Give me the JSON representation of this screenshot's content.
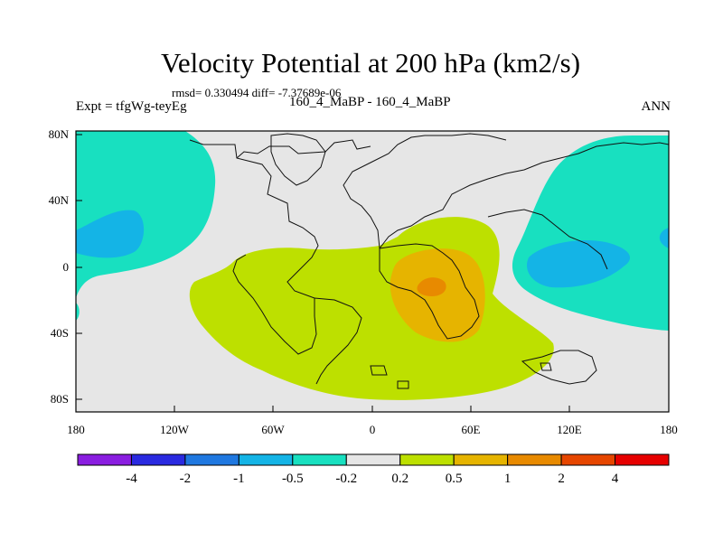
{
  "chart_data": {
    "type": "contour-map",
    "title": "Velocity Potential at 200 hPa (km2/s)",
    "subtitle": "rmsd= 0.330494 diff= -7.37689e-06",
    "experiment": "Expt = tfgWg-teyEg",
    "case": "160_4_MaBP - 160_4_MaBP",
    "season": "ANN",
    "x_axis": {
      "range": [
        -180,
        180
      ],
      "tick_labels": [
        "180",
        "120W",
        "60W",
        "0",
        "60E",
        "120E",
        "180"
      ]
    },
    "y_axis": {
      "range": [
        -90,
        90
      ],
      "tick_labels": [
        "80N",
        "40N",
        "0",
        "40S",
        "80S"
      ]
    },
    "colorbar": {
      "levels": [
        "-4",
        "-2",
        "-1",
        "-0.5",
        "-0.2",
        "0.2",
        "0.5",
        "1",
        "2",
        "4"
      ],
      "colors": [
        "#8a1ee0",
        "#2a2ae0",
        "#1f78e0",
        "#14b4e6",
        "#18e0c0",
        "#e6e6e6",
        "#bde000",
        "#e6b400",
        "#e88a00",
        "#e64600",
        "#e60000"
      ]
    },
    "regions": [
      {
        "name": "north-pacific-negative",
        "level_band": "-0.5 to -0.2",
        "color": "#18e0c0"
      },
      {
        "name": "west-pacific-core",
        "level_band": "-1 to -0.5",
        "color": "#14b4e6"
      },
      {
        "name": "indo-pacific-negative",
        "level_band": "-0.5 to -0.2",
        "color": "#18e0c0"
      },
      {
        "name": "atlantic-africa-positive",
        "level_band": "0.2 to 0.5",
        "color": "#bde000"
      },
      {
        "name": "africa-core",
        "level_band": "0.5 to 1",
        "color": "#e6b400"
      },
      {
        "name": "africa-max",
        "level_band": "1 to 2",
        "color": "#e88a00"
      }
    ]
  }
}
